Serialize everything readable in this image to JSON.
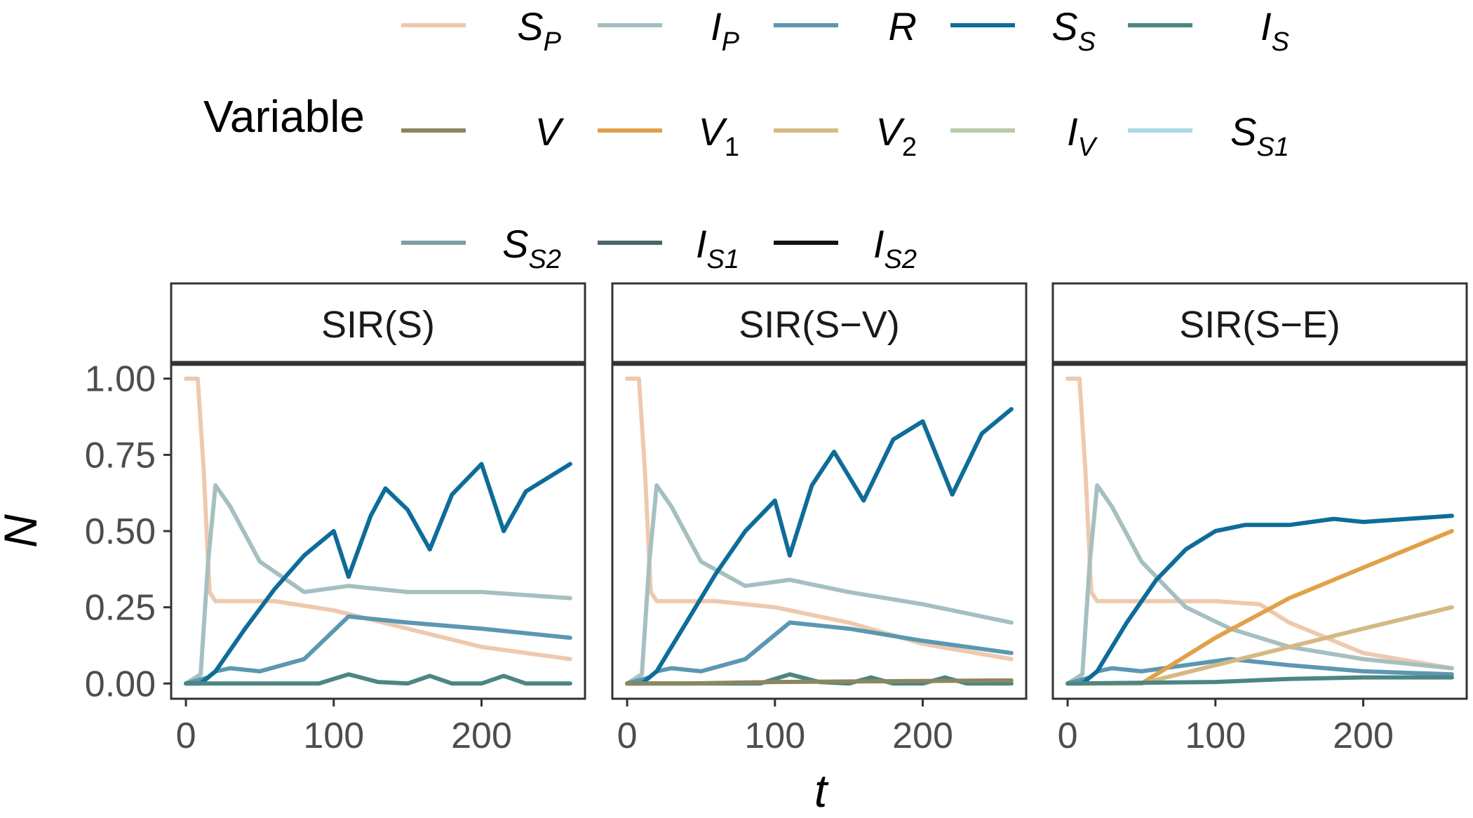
{
  "chart_data": {
    "type": "line",
    "legend": {
      "title": "Variable",
      "placement": "top",
      "entries": [
        {
          "base": "S",
          "sub": "P",
          "color": "#EEC9AE"
        },
        {
          "base": "I",
          "sub": "P",
          "color": "#A6BFC0"
        },
        {
          "base": "R",
          "sub": "",
          "color": "#5B97B2"
        },
        {
          "base": "S",
          "sub": "S",
          "color": "#0E6C99"
        },
        {
          "base": "I",
          "sub": "S",
          "color": "#4C8682"
        },
        {
          "base": "V",
          "sub": "",
          "color": "#8A8760"
        },
        {
          "base": "V",
          "sub": "1",
          "color": "#E0A148"
        },
        {
          "base": "V",
          "sub": "2",
          "color": "#D4B985"
        },
        {
          "base": "I",
          "sub": "V",
          "color": "#B8CBA9"
        },
        {
          "base": "S",
          "sub": "S1",
          "color": "#A9D9DF"
        },
        {
          "base": "S",
          "sub": "S2",
          "color": "#7C9EA7"
        },
        {
          "base": "I",
          "sub": "S1",
          "color": "#4C6468"
        },
        {
          "base": "I",
          "sub": "S2",
          "color": "#111111"
        }
      ]
    },
    "xlabel": "t",
    "ylabel": "N",
    "xlim": [
      -10,
      270
    ],
    "ylim": [
      -0.05,
      1.05
    ],
    "x_ticks": [
      {
        "value": 0,
        "label": "0"
      },
      {
        "value": 100,
        "label": "100"
      },
      {
        "value": 200,
        "label": "200"
      }
    ],
    "y_ticks": [
      {
        "value": 0,
        "label": "0.00"
      },
      {
        "value": 0.25,
        "label": "0.25"
      },
      {
        "value": 0.5,
        "label": "0.50"
      },
      {
        "value": 0.75,
        "label": "0.75"
      },
      {
        "value": 1,
        "label": "1.00"
      }
    ],
    "grid": false,
    "panels": [
      {
        "title": "SIR(S)",
        "series": [
          {
            "key": "SP",
            "x": [
              0,
              8,
              12,
              16,
              20,
              25,
              60,
              100,
              150,
              200,
              260
            ],
            "y": [
              1.0,
              1.0,
              0.7,
              0.3,
              0.27,
              0.27,
              0.27,
              0.24,
              0.18,
              0.12,
              0.08
            ]
          },
          {
            "key": "IP",
            "x": [
              0,
              10,
              15,
              20,
              30,
              50,
              80,
              110,
              150,
              200,
              260
            ],
            "y": [
              0.0,
              0.03,
              0.4,
              0.65,
              0.58,
              0.4,
              0.3,
              0.32,
              0.3,
              0.3,
              0.28
            ]
          },
          {
            "key": "R",
            "x": [
              0,
              15,
              20,
              30,
              50,
              80,
              110,
              150,
              200,
              260
            ],
            "y": [
              0.0,
              0.02,
              0.04,
              0.05,
              0.04,
              0.08,
              0.22,
              0.2,
              0.18,
              0.15
            ]
          },
          {
            "key": "SS",
            "x": [
              0,
              10,
              20,
              40,
              60,
              80,
              100,
              110,
              125,
              135,
              150,
              165,
              180,
              200,
              215,
              230,
              260
            ],
            "y": [
              0.0,
              0.0,
              0.04,
              0.18,
              0.31,
              0.42,
              0.5,
              0.35,
              0.55,
              0.64,
              0.57,
              0.44,
              0.62,
              0.72,
              0.5,
              0.63,
              0.72
            ]
          },
          {
            "key": "IS",
            "x": [
              0,
              90,
              110,
              130,
              150,
              165,
              180,
              200,
              215,
              230,
              260
            ],
            "y": [
              0.0,
              0.0,
              0.03,
              0.005,
              0.0,
              0.025,
              0.0,
              0.0,
              0.025,
              0.0,
              0.0
            ]
          }
        ]
      },
      {
        "title": "SIR(S−V)",
        "series": [
          {
            "key": "SP",
            "x": [
              0,
              8,
              12,
              16,
              20,
              25,
              60,
              100,
              150,
              200,
              260
            ],
            "y": [
              1.0,
              1.0,
              0.7,
              0.3,
              0.27,
              0.27,
              0.27,
              0.25,
              0.2,
              0.13,
              0.08
            ]
          },
          {
            "key": "IP",
            "x": [
              0,
              10,
              15,
              20,
              30,
              50,
              80,
              110,
              150,
              200,
              260
            ],
            "y": [
              0.0,
              0.03,
              0.4,
              0.65,
              0.58,
              0.4,
              0.32,
              0.34,
              0.3,
              0.26,
              0.2
            ]
          },
          {
            "key": "R",
            "x": [
              0,
              15,
              20,
              30,
              50,
              80,
              110,
              150,
              200,
              260
            ],
            "y": [
              0.0,
              0.02,
              0.04,
              0.05,
              0.04,
              0.08,
              0.2,
              0.18,
              0.14,
              0.1
            ]
          },
          {
            "key": "SS",
            "x": [
              0,
              10,
              20,
              40,
              60,
              80,
              100,
              110,
              125,
              140,
              160,
              180,
              200,
              220,
              240,
              260
            ],
            "y": [
              0.0,
              0.0,
              0.04,
              0.2,
              0.36,
              0.5,
              0.6,
              0.42,
              0.65,
              0.76,
              0.6,
              0.8,
              0.86,
              0.62,
              0.82,
              0.9
            ]
          },
          {
            "key": "IS",
            "x": [
              0,
              90,
              110,
              130,
              150,
              165,
              180,
              200,
              215,
              230,
              260
            ],
            "y": [
              0.0,
              0.0,
              0.03,
              0.005,
              0.0,
              0.02,
              0.0,
              0.0,
              0.02,
              0.0,
              0.0
            ]
          },
          {
            "key": "V",
            "x": [
              0,
              40,
              100,
              160,
              260
            ],
            "y": [
              0.0,
              0.0,
              0.005,
              0.007,
              0.01
            ]
          }
        ]
      },
      {
        "title": "SIR(S−E)",
        "series": [
          {
            "key": "SP",
            "x": [
              0,
              8,
              12,
              16,
              20,
              25,
              60,
              100,
              130,
              150,
              200,
              260
            ],
            "y": [
              1.0,
              1.0,
              0.7,
              0.3,
              0.27,
              0.27,
              0.27,
              0.27,
              0.26,
              0.2,
              0.1,
              0.05
            ]
          },
          {
            "key": "IP",
            "x": [
              0,
              10,
              15,
              20,
              30,
              50,
              80,
              110,
              150,
              200,
              260
            ],
            "y": [
              0.0,
              0.03,
              0.4,
              0.65,
              0.58,
              0.4,
              0.25,
              0.18,
              0.12,
              0.08,
              0.05
            ]
          },
          {
            "key": "R",
            "x": [
              0,
              15,
              20,
              30,
              50,
              80,
              110,
              150,
              200,
              260
            ],
            "y": [
              0.0,
              0.02,
              0.04,
              0.05,
              0.04,
              0.06,
              0.08,
              0.06,
              0.04,
              0.03
            ]
          },
          {
            "key": "SS",
            "x": [
              0,
              10,
              20,
              40,
              60,
              80,
              100,
              120,
              150,
              180,
              200,
              230,
              260
            ],
            "y": [
              0.0,
              0.0,
              0.04,
              0.2,
              0.34,
              0.44,
              0.5,
              0.52,
              0.52,
              0.54,
              0.53,
              0.54,
              0.55
            ]
          },
          {
            "key": "V1",
            "x": [
              0,
              50,
              100,
              150,
              200,
              260
            ],
            "y": [
              0.0,
              0.0,
              0.15,
              0.28,
              0.38,
              0.5
            ]
          },
          {
            "key": "V2",
            "x": [
              0,
              50,
              100,
              150,
              200,
              260
            ],
            "y": [
              0.0,
              0.0,
              0.06,
              0.12,
              0.18,
              0.25
            ]
          },
          {
            "key": "IS",
            "x": [
              0,
              100,
              150,
              200,
              260
            ],
            "y": [
              0.0,
              0.005,
              0.015,
              0.02,
              0.02
            ]
          }
        ]
      }
    ]
  }
}
